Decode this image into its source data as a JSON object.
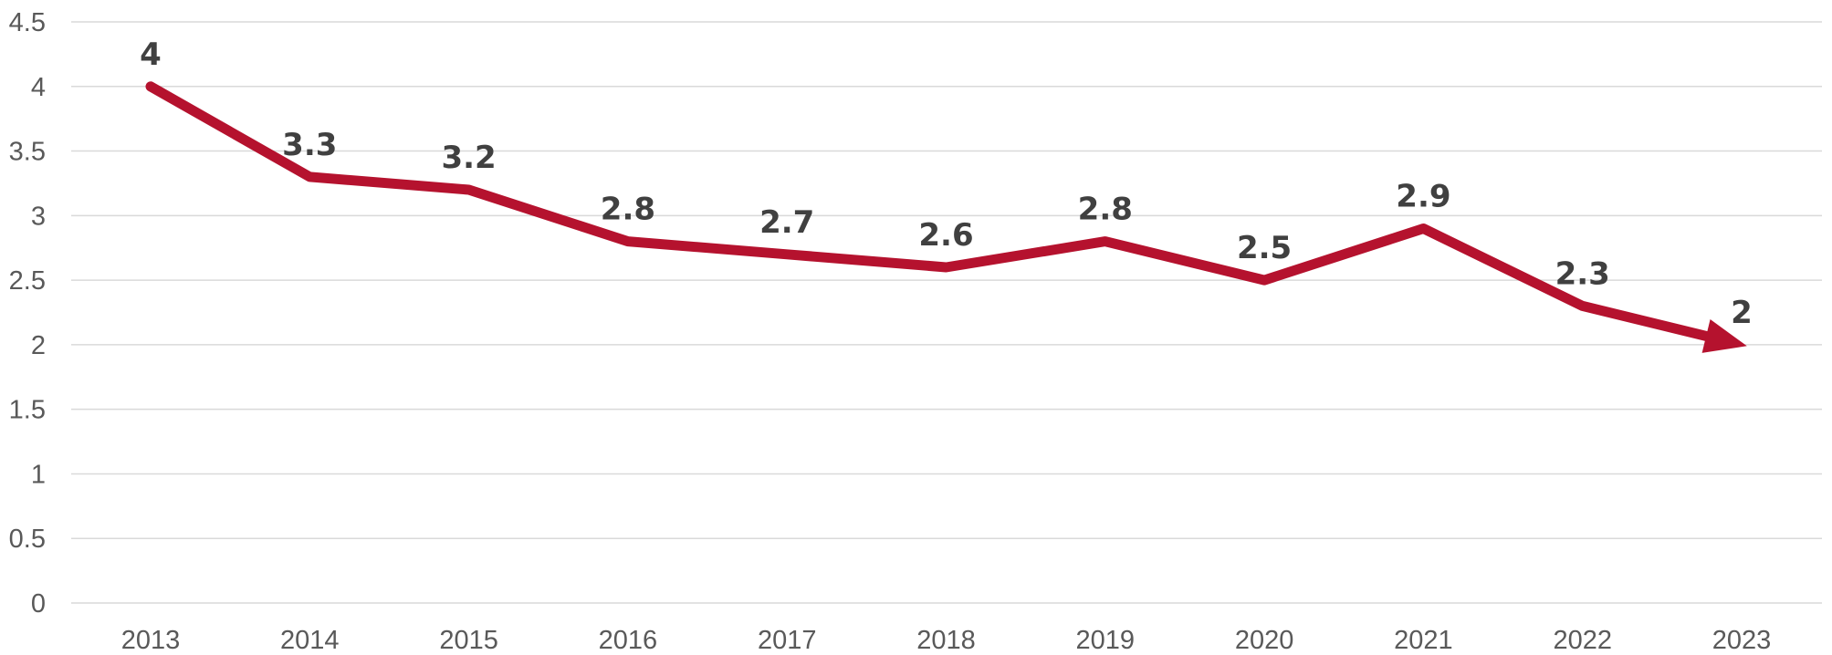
{
  "chart_data": {
    "type": "line",
    "title": "",
    "xlabel": "",
    "ylabel": "",
    "categories": [
      "2013",
      "2014",
      "2015",
      "2016",
      "2017",
      "2018",
      "2019",
      "2020",
      "2021",
      "2022",
      "2023"
    ],
    "series": [
      {
        "values": [
          4,
          3.3,
          3.2,
          2.8,
          2.7,
          2.6,
          2.8,
          2.5,
          2.9,
          2.3,
          2
        ],
        "data_labels": [
          "4",
          "3.3",
          "3.2",
          "2.8",
          "2.7",
          "2.6",
          "2.8",
          "2.5",
          "2.9",
          "2.3",
          "2"
        ],
        "color": "#b5122e",
        "end_marker": "arrow"
      }
    ],
    "ylim": [
      0,
      4.5
    ],
    "y_ticks": [
      "0",
      "0.5",
      "1",
      "1.5",
      "2",
      "2.5",
      "3",
      "3.5",
      "4",
      "4.5"
    ],
    "grid": true,
    "legend": "none"
  }
}
